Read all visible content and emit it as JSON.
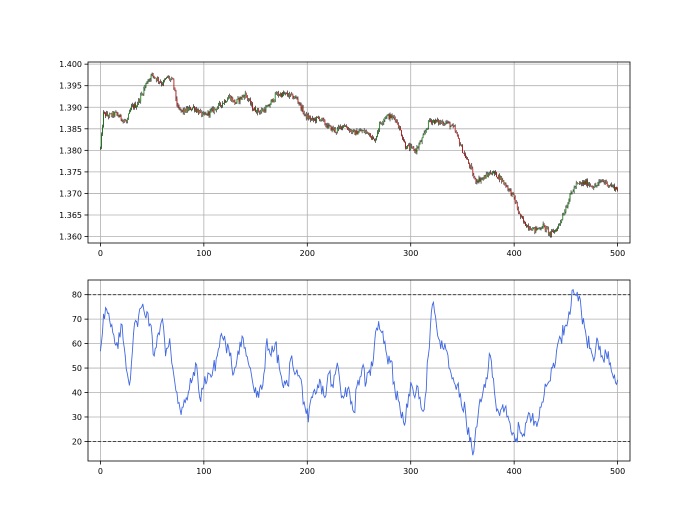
{
  "chart_data": [
    {
      "type": "candlestick",
      "title": "",
      "xlabel": "",
      "ylabel": "",
      "xlim": [
        -12,
        512
      ],
      "ylim": [
        1.3585,
        1.4005
      ],
      "xticks": [
        0,
        100,
        200,
        300,
        400,
        500
      ],
      "xtick_labels": [
        "0",
        "100",
        "200",
        "300",
        "400",
        "500"
      ],
      "yticks": [
        1.36,
        1.365,
        1.37,
        1.375,
        1.38,
        1.385,
        1.39,
        1.395,
        1.4
      ],
      "ytick_labels": [
        "1.360",
        "1.365",
        "1.370",
        "1.375",
        "1.380",
        "1.385",
        "1.390",
        "1.395",
        "1.400"
      ],
      "grid": true,
      "colors": {
        "up": "#008000",
        "down": "#cc0000"
      },
      "close_path": [
        [
          0,
          1.3805
        ],
        [
          3,
          1.3885
        ],
        [
          8,
          1.388
        ],
        [
          15,
          1.3885
        ],
        [
          20,
          1.3875
        ],
        [
          25,
          1.3865
        ],
        [
          30,
          1.39
        ],
        [
          35,
          1.3905
        ],
        [
          40,
          1.393
        ],
        [
          45,
          1.396
        ],
        [
          50,
          1.3975
        ],
        [
          55,
          1.3965
        ],
        [
          60,
          1.3955
        ],
        [
          65,
          1.397
        ],
        [
          70,
          1.396
        ],
        [
          75,
          1.3895
        ],
        [
          80,
          1.389
        ],
        [
          90,
          1.39
        ],
        [
          100,
          1.388
        ],
        [
          110,
          1.3895
        ],
        [
          118,
          1.391
        ],
        [
          125,
          1.3925
        ],
        [
          130,
          1.391
        ],
        [
          140,
          1.393
        ],
        [
          148,
          1.3895
        ],
        [
          155,
          1.389
        ],
        [
          162,
          1.39
        ],
        [
          170,
          1.393
        ],
        [
          180,
          1.393
        ],
        [
          190,
          1.392
        ],
        [
          198,
          1.388
        ],
        [
          205,
          1.387
        ],
        [
          212,
          1.3875
        ],
        [
          220,
          1.3855
        ],
        [
          228,
          1.3845
        ],
        [
          235,
          1.386
        ],
        [
          245,
          1.384
        ],
        [
          252,
          1.3845
        ],
        [
          260,
          1.384
        ],
        [
          265,
          1.382
        ],
        [
          270,
          1.386
        ],
        [
          276,
          1.388
        ],
        [
          285,
          1.3875
        ],
        [
          290,
          1.3845
        ],
        [
          295,
          1.381
        ],
        [
          305,
          1.38
        ],
        [
          312,
          1.383
        ],
        [
          318,
          1.387
        ],
        [
          328,
          1.3865
        ],
        [
          335,
          1.3865
        ],
        [
          342,
          1.385
        ],
        [
          350,
          1.38
        ],
        [
          358,
          1.376
        ],
        [
          362,
          1.373
        ],
        [
          370,
          1.3735
        ],
        [
          378,
          1.375
        ],
        [
          385,
          1.374
        ],
        [
          392,
          1.372
        ],
        [
          400,
          1.369
        ],
        [
          405,
          1.365
        ],
        [
          410,
          1.363
        ],
        [
          420,
          1.3615
        ],
        [
          428,
          1.3625
        ],
        [
          435,
          1.3605
        ],
        [
          442,
          1.362
        ],
        [
          448,
          1.3655
        ],
        [
          455,
          1.37
        ],
        [
          460,
          1.372
        ],
        [
          470,
          1.3725
        ],
        [
          478,
          1.3715
        ],
        [
          485,
          1.373
        ],
        [
          492,
          1.372
        ],
        [
          500,
          1.371
        ]
      ],
      "n_candles": 500
    },
    {
      "type": "line",
      "title": "",
      "xlabel": "",
      "ylabel": "",
      "xlim": [
        -12,
        512
      ],
      "ylim": [
        12,
        86
      ],
      "xticks": [
        0,
        100,
        200,
        300,
        400,
        500
      ],
      "xtick_labels": [
        "0",
        "100",
        "200",
        "300",
        "400",
        "500"
      ],
      "yticks": [
        20,
        30,
        40,
        50,
        60,
        70,
        80
      ],
      "ytick_labels": [
        "20",
        "30",
        "40",
        "50",
        "60",
        "70",
        "80"
      ],
      "grid": true,
      "hlines": [
        80,
        20
      ],
      "colors": {
        "line": "#4169e1",
        "hline": "#333333"
      },
      "x": [
        0,
        3,
        6,
        10,
        14,
        17,
        20,
        24,
        28,
        32,
        35,
        40,
        45,
        48,
        52,
        55,
        60,
        63,
        67,
        70,
        74,
        78,
        82,
        85,
        88,
        92,
        96,
        100,
        104,
        108,
        113,
        117,
        121,
        125,
        129,
        133,
        137,
        141,
        145,
        149,
        153,
        157,
        161,
        165,
        169,
        173,
        177,
        181,
        185,
        189,
        193,
        197,
        201,
        205,
        209,
        213,
        217,
        221,
        225,
        229,
        233,
        237,
        241,
        245,
        249,
        253,
        257,
        261,
        265,
        269,
        273,
        277,
        281,
        285,
        289,
        293,
        297,
        301,
        305,
        309,
        313,
        317,
        321,
        325,
        329,
        333,
        337,
        341,
        345,
        349,
        353,
        357,
        361,
        365,
        369,
        373,
        377,
        381,
        385,
        389,
        393,
        397,
        401,
        405,
        409,
        413,
        417,
        421,
        425,
        429,
        433,
        437,
        441,
        445,
        449,
        453,
        457,
        461,
        465,
        469,
        473,
        477,
        481,
        485,
        489,
        493,
        497,
        500
      ],
      "values": [
        57,
        72,
        74,
        67,
        60,
        58,
        68,
        55,
        43,
        64,
        69,
        75,
        73,
        68,
        55,
        63,
        70,
        55,
        62,
        50,
        40,
        31,
        36,
        40,
        44,
        52,
        38,
        43,
        48,
        47,
        55,
        64,
        60,
        55,
        48,
        57,
        63,
        55,
        50,
        40,
        38,
        43,
        62,
        55,
        60,
        50,
        42,
        43,
        55,
        48,
        46,
        36,
        28,
        38,
        40,
        44,
        38,
        48,
        42,
        52,
        38,
        42,
        40,
        32,
        45,
        50,
        44,
        47,
        60,
        69,
        65,
        55,
        53,
        40,
        36,
        28,
        34,
        43,
        40,
        38,
        33,
        55,
        76,
        67,
        58,
        60,
        50,
        46,
        43,
        35,
        32,
        20,
        16,
        30,
        38,
        46,
        55,
        40,
        32,
        35,
        30,
        24,
        20,
        26,
        23,
        30,
        29,
        28,
        34,
        39,
        44,
        50,
        57,
        62,
        67,
        73,
        82,
        81,
        73,
        65,
        58,
        53,
        61,
        55,
        56,
        52,
        47,
        45
      ]
    }
  ]
}
